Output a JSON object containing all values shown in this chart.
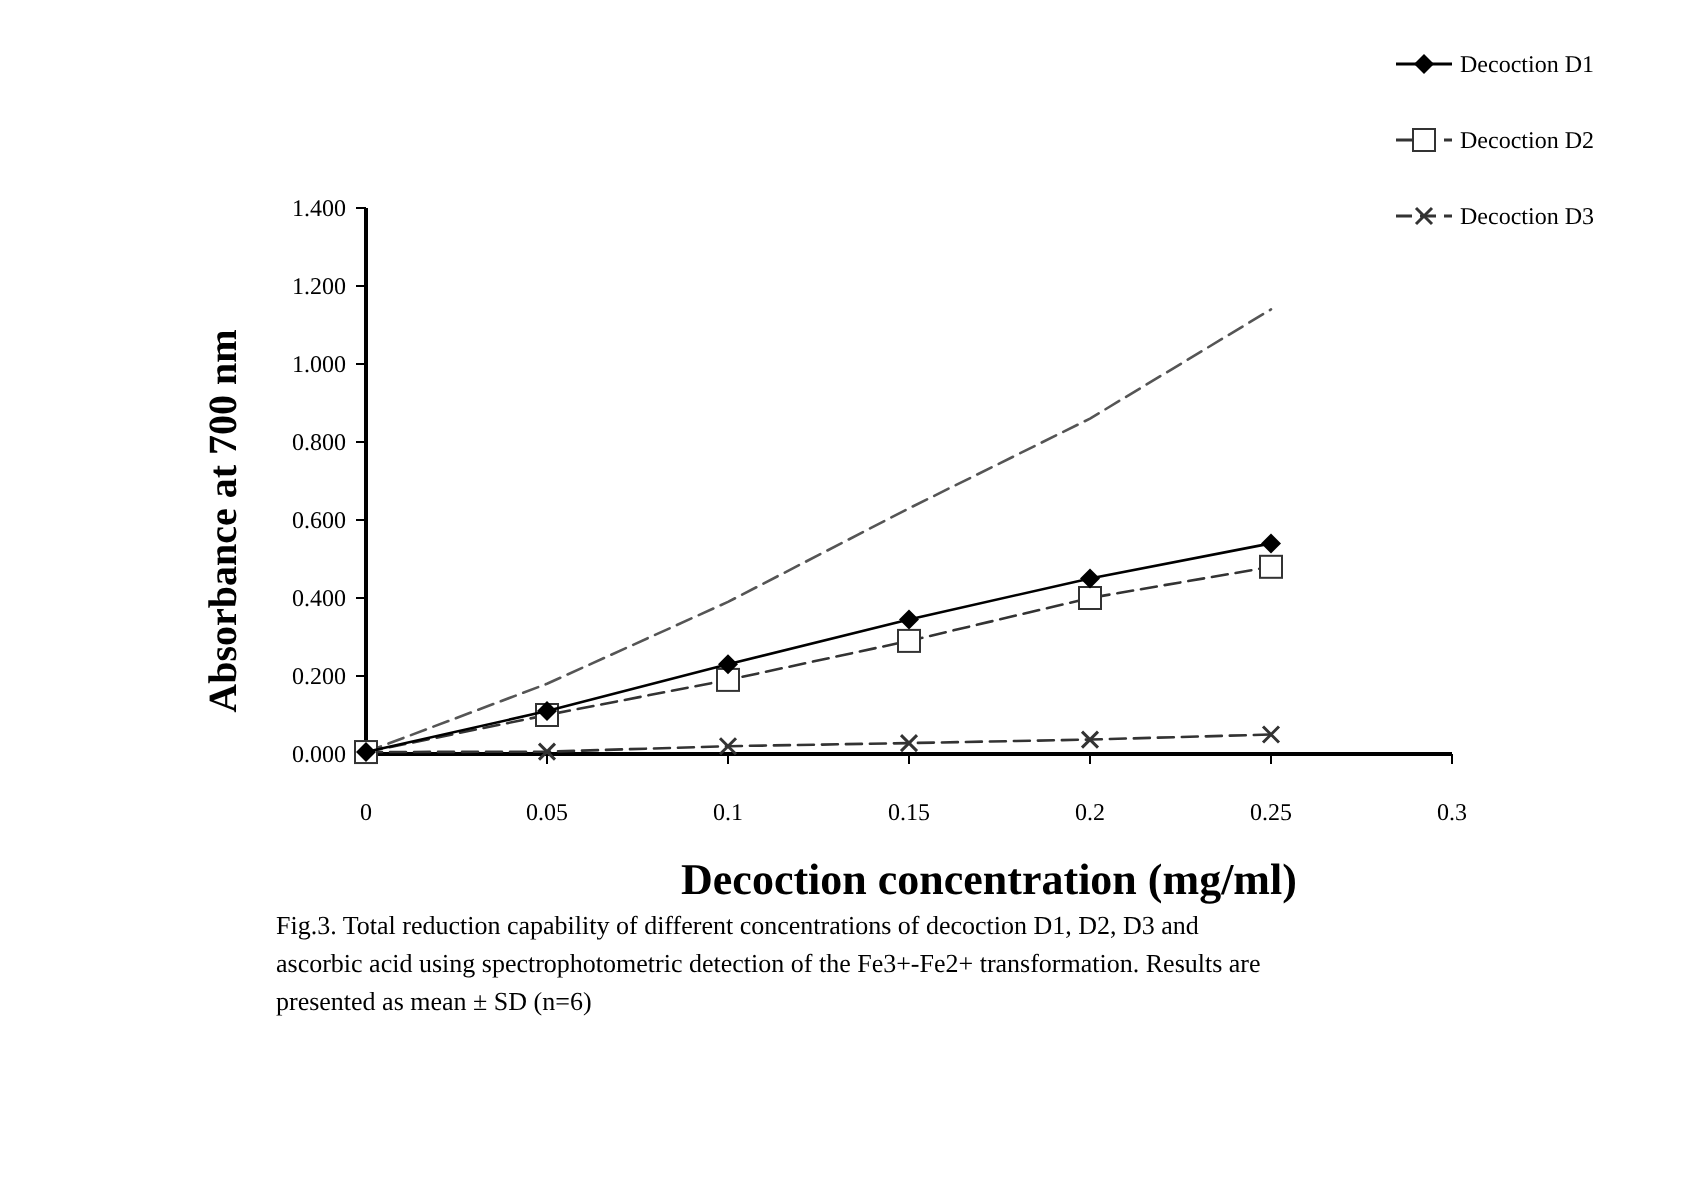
{
  "chart_data": {
    "type": "line",
    "xlabel": "Decoction concentration (mg/ml)",
    "ylabel": "Absorbance at 700 nm",
    "x": [
      0,
      0.05,
      0.1,
      0.15,
      0.2,
      0.25
    ],
    "xlim": [
      0,
      0.3
    ],
    "xticks": [
      0,
      0.05,
      0.1,
      0.15,
      0.2,
      0.25,
      0.3
    ],
    "ylim": [
      0,
      1.4
    ],
    "yticks": [
      {
        "value": 0,
        "label": "0.000"
      },
      {
        "value": 0.2,
        "label": "0.200"
      },
      {
        "value": 0.4,
        "label": "0.400"
      },
      {
        "value": 0.6,
        "label": "0.600"
      },
      {
        "value": 0.8,
        "label": "0.800"
      },
      {
        "value": 1,
        "label": "1.000"
      },
      {
        "value": 1.2,
        "label": "1.200"
      },
      {
        "value": 1.4,
        "label": "1.400"
      }
    ],
    "series": [
      {
        "name": "Decoction D1",
        "color": "#000000",
        "marker": "diamond",
        "line_style": "solid",
        "values": [
          0.005,
          0.11,
          0.23,
          0.345,
          0.45,
          0.54
        ]
      },
      {
        "name": "Decoction D2",
        "color": "#333333",
        "marker": "square",
        "line_style": "dashed",
        "values": [
          0.005,
          0.1,
          0.19,
          0.29,
          0.4,
          0.48
        ]
      },
      {
        "name": "Decoction D3",
        "color": "#333333",
        "marker": "cross",
        "line_style": "dashed",
        "values": [
          0.005,
          0.006,
          0.02,
          0.028,
          0.037,
          0.05
        ]
      },
      {
        "color": "#555555",
        "marker": "none",
        "line_style": "dashed",
        "values": [
          0.005,
          0.18,
          0.39,
          0.63,
          0.86,
          1.14
        ]
      }
    ],
    "legend": "top right",
    "grid": false,
    "annotations": [
      "Fig.3. Total reduction capability of different concentrations of decoction D1, D2, D3 and ascorbic acid using spectrophotometric detection of the Fe3+-Fe2+ transformation. Results are presented as mean ± SD (n=6)"
    ]
  }
}
